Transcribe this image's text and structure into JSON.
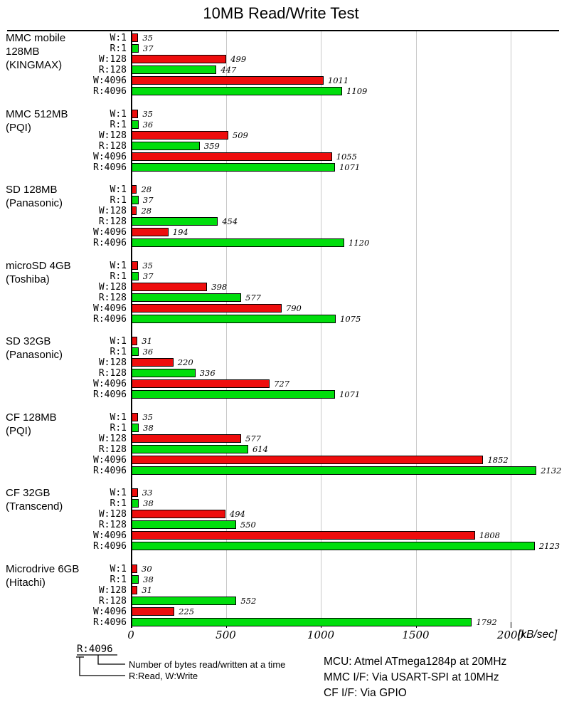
{
  "title": "10MB Read/Write Test",
  "chart_data": {
    "type": "bar",
    "orientation": "horizontal",
    "title": "10MB Read/Write Test",
    "unit_label": "[kB/sec]",
    "x_ticks": [
      0,
      500,
      1000,
      1500,
      2000
    ],
    "axis_range": [
      0,
      2250
    ],
    "grid": true,
    "bar_labels": [
      "W:1",
      "R:1",
      "W:128",
      "R:128",
      "W:4096",
      "R:4096"
    ],
    "colors": {
      "write": "#ee0d0d",
      "read": "#00de0c",
      "bar_border": "#000000",
      "gridline": "#c9c9c9",
      "axis": "#000000"
    },
    "groups": [
      {
        "label_lines": [
          "MMC mobile",
          "128MB",
          "(KINGMAX)"
        ],
        "values": [
          35,
          37,
          499,
          447,
          1011,
          1109
        ]
      },
      {
        "label_lines": [
          "MMC 512MB",
          "(PQI)"
        ],
        "values": [
          35,
          36,
          509,
          359,
          1055,
          1071
        ]
      },
      {
        "label_lines": [
          "SD 128MB",
          "(Panasonic)"
        ],
        "values": [
          28,
          37,
          28,
          454,
          194,
          1120
        ]
      },
      {
        "label_lines": [
          "microSD 4GB",
          "(Toshiba)"
        ],
        "values": [
          35,
          37,
          398,
          577,
          790,
          1075
        ]
      },
      {
        "label_lines": [
          "SD 32GB",
          "(Panasonic)"
        ],
        "values": [
          31,
          36,
          220,
          336,
          727,
          1071
        ]
      },
      {
        "label_lines": [
          "CF 128MB",
          "(PQI)"
        ],
        "values": [
          35,
          38,
          577,
          614,
          1852,
          2132
        ]
      },
      {
        "label_lines": [
          "CF 32GB",
          "(Transcend)"
        ],
        "values": [
          33,
          38,
          494,
          550,
          1808,
          2123
        ]
      },
      {
        "label_lines": [
          "Microdrive 6GB",
          "(Hitachi)"
        ],
        "values": [
          30,
          38,
          31,
          552,
          225,
          1792
        ]
      }
    ]
  },
  "legend": {
    "example_label": "R:4096",
    "bytes_note": "Number of bytes read/written at a time",
    "rw_note": "R:Read, W:Write"
  },
  "footer_info": {
    "mcu": "MCU: Atmel ATmega1284p at 20MHz",
    "mmc_if": "MMC I/F: Via USART-SPI at 10MHz",
    "cf_if": "CF I/F: Via GPIO"
  }
}
